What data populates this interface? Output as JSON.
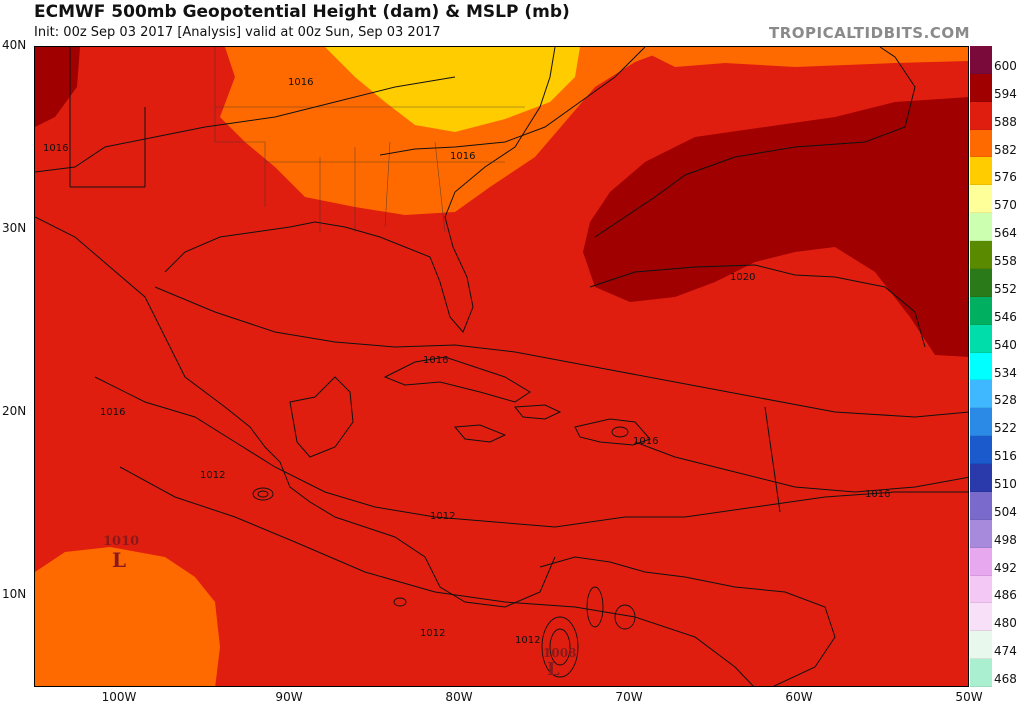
{
  "header": {
    "title": "ECMWF 500mb Geopotential Height (dam) & MSLP (mb)",
    "subtitle": "Init: 00z Sep 03 2017   [Analysis]   valid at 00z Sun, Sep 03 2017",
    "brand": "TROPICALTIDBITS.COM"
  },
  "axes": {
    "lat_labels": [
      "40N",
      "30N",
      "20N",
      "10N"
    ],
    "lon_labels": [
      "100W",
      "90W",
      "80W",
      "70W",
      "60W",
      "50W"
    ]
  },
  "colorbar": {
    "levels": [
      "600",
      "594",
      "588",
      "582",
      "576",
      "570",
      "564",
      "558",
      "552",
      "546",
      "540",
      "534",
      "528",
      "522",
      "516",
      "510",
      "504",
      "498",
      "492",
      "486",
      "480",
      "474",
      "468"
    ],
    "colors": [
      "#7a0a3a",
      "#a00000",
      "#e01e10",
      "#ff6a00",
      "#ffcc00",
      "#ffff99",
      "#ccffb0",
      "#5a8a00",
      "#2a7a1a",
      "#00b060",
      "#00ddaa",
      "#00ffff",
      "#40b8ff",
      "#2a8ae6",
      "#1a5acc",
      "#2a3aaa",
      "#7a6acc",
      "#a88adc",
      "#e8a8f0",
      "#f4c8f4",
      "#f8e0f8",
      "#e8f8ec",
      "#aaf0d0"
    ]
  },
  "map_labels": {
    "isobars": [
      "1016",
      "1016",
      "1016",
      "1016",
      "1016",
      "1016",
      "1020",
      "1012",
      "1012",
      "1012",
      "1016",
      "1012"
    ],
    "lows": [
      {
        "value": "1010",
        "letter": "L"
      },
      {
        "value": "1008",
        "letter": "L"
      }
    ]
  }
}
